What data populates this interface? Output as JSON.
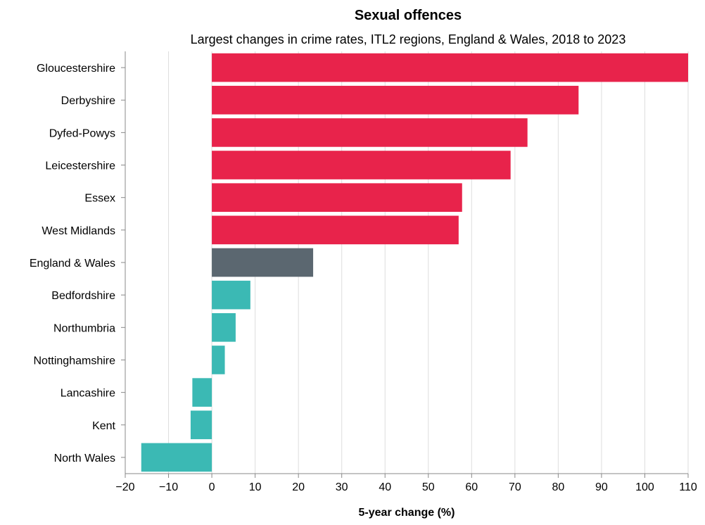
{
  "chart_data": {
    "type": "bar",
    "orientation": "horizontal",
    "title": "Sexual offences",
    "subtitle": "Largest changes in crime rates, ITL2 regions, England & Wales, 2018 to 2023",
    "xlabel": "5-year change (%)",
    "ylabel": "",
    "xlim": [
      -20,
      110
    ],
    "xticks": [
      -20,
      -10,
      0,
      10,
      20,
      30,
      40,
      50,
      60,
      70,
      80,
      90,
      100,
      110
    ],
    "grid": true,
    "colors": {
      "increase": "#e8234b",
      "average": "#5b6770",
      "decrease": "#3bb9b4"
    },
    "bars": [
      {
        "category": "Gloucestershire",
        "value": 110,
        "group": "increase"
      },
      {
        "category": "Derbyshire",
        "value": 84.7,
        "group": "increase"
      },
      {
        "category": "Dyfed-Powys",
        "value": 72.9,
        "group": "increase"
      },
      {
        "category": "Leicestershire",
        "value": 69,
        "group": "increase"
      },
      {
        "category": "Essex",
        "value": 57.8,
        "group": "increase"
      },
      {
        "category": "West Midlands",
        "value": 57,
        "group": "increase"
      },
      {
        "category": "England & Wales",
        "value": 23.4,
        "group": "average"
      },
      {
        "category": "Bedfordshire",
        "value": 8.9,
        "group": "decrease"
      },
      {
        "category": "Northumbria",
        "value": 5.5,
        "group": "decrease"
      },
      {
        "category": "Nottinghamshire",
        "value": 3,
        "group": "decrease"
      },
      {
        "category": "Lancashire",
        "value": -4.5,
        "group": "decrease"
      },
      {
        "category": "Kent",
        "value": -4.9,
        "group": "decrease"
      },
      {
        "category": "North Wales",
        "value": -16.3,
        "group": "decrease"
      }
    ]
  }
}
